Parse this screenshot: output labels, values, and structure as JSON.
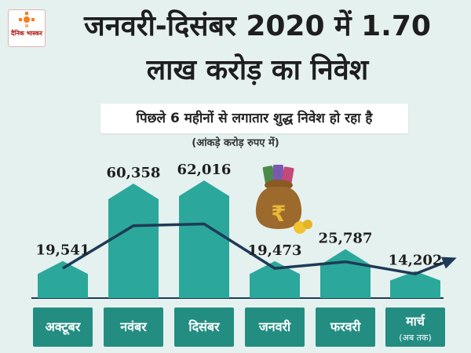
{
  "brand": {
    "logo_text": "दैनिक भास्कर"
  },
  "header": {
    "title_line1": "जनवरी-दिसंबर 2020 में 1.70",
    "title_line2": "लाख करोड़ का निवेश",
    "subtitle": "पिछले 6 महीनों से लगातार शुद्ध निवेश हो रहा है",
    "unit_note": "(आंकड़े करोड़ रुपए में)"
  },
  "colors": {
    "background": "#e5f1ef",
    "bar": "#2ba89b",
    "label_box": "#238d82",
    "line": "#1f3a56",
    "text": "#1e1e1e"
  },
  "icons": [
    "money-bag-icon",
    "brand-logo-icon"
  ],
  "chart_data": {
    "type": "bar",
    "categories": [
      "अक्टूबर",
      "नवंबर",
      "दिसंबर",
      "जनवरी",
      "फरवरी",
      "मार्च"
    ],
    "category_notes": [
      "",
      "",
      "",
      "",
      "",
      "(अब तक)"
    ],
    "values": [
      19541,
      60358,
      62016,
      19473,
      25787,
      14202
    ],
    "value_labels": [
      "19,541",
      "60,358",
      "62,016",
      "19,473",
      "25,787",
      "14,202"
    ],
    "trend_line": true,
    "trend_arrow_end": true,
    "xlabel": "",
    "ylabel": "",
    "grid": false
  }
}
